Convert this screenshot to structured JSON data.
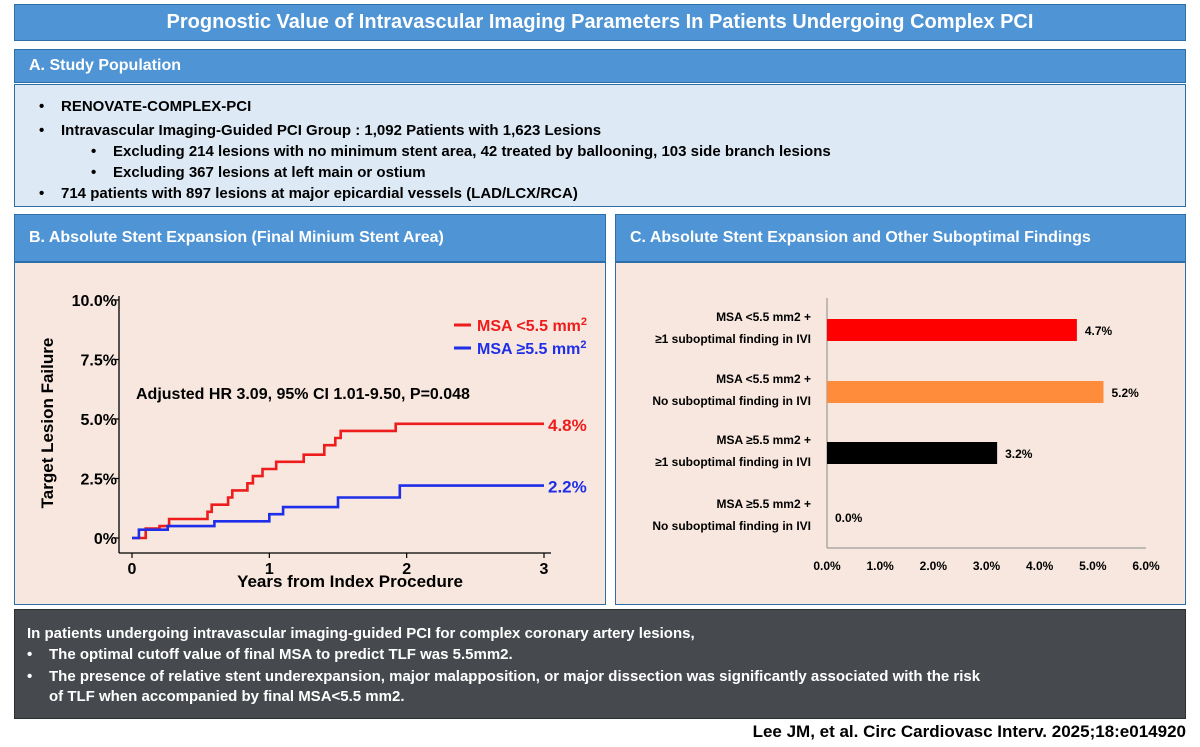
{
  "title": "Prognostic Value of Intravascular Imaging Parameters In Patients Undergoing Complex PCI",
  "section_a": {
    "heading": "A. Study Population",
    "bullets": [
      "RENOVATE-COMPLEX-PCI",
      "Intravascular Imaging-Guided PCI Group : 1,092 Patients with 1,623 Lesions",
      "Excluding 214 lesions with no minimum stent area, 42 treated by ballooning, 103 side branch lesions",
      "Excluding 367 lesions at left main or ostium",
      "714 patients with 897 lesions at major epicardial vessels (LAD/LCX/RCA)"
    ]
  },
  "section_b": {
    "heading": "B. Absolute Stent Expansion (Final Minium Stent Area)"
  },
  "section_c": {
    "heading": "C. Absolute Stent Expansion and Other Suboptimal Findings"
  },
  "conclusion": {
    "intro": "In patients undergoing intravascular imaging-guided PCI for complex coronary artery lesions,",
    "bullets": [
      "The optimal cutoff value of final MSA to predict TLF was 5.5mm2.",
      "The presence of relative stent underexpansion, major malapposition, or major dissection was significantly associated with the risk",
      "of TLF when accompanied by final MSA<5.5 mm2."
    ]
  },
  "citation": "Lee JM, et al. Circ Cardiovasc Interv. 2025;18:e014920",
  "chart_data": [
    {
      "type": "line",
      "xlabel": "Years from Index Procedure",
      "ylabel": "Target Lesion Failure",
      "xticks": [
        "0",
        "1",
        "2",
        "3"
      ],
      "yticks": [
        "0%",
        "2.5%",
        "5.0%",
        "7.5%",
        "10.0%"
      ],
      "xlim": [
        0,
        3
      ],
      "ylim": [
        0,
        10
      ],
      "annotation": "Adjusted HR 3.09, 95% CI 1.01-9.50, P=0.048",
      "legend_position": "top-right",
      "series": [
        {
          "name": "MSA <5.5 mm",
          "name_sup": "2",
          "color": "#ee1c1c",
          "end_label": "4.8%",
          "points": [
            [
              0,
              0
            ],
            [
              0.1,
              0
            ],
            [
              0.1,
              0.4
            ],
            [
              0.2,
              0.4
            ],
            [
              0.2,
              0.5
            ],
            [
              0.27,
              0.5
            ],
            [
              0.27,
              0.8
            ],
            [
              0.55,
              0.8
            ],
            [
              0.55,
              1.1
            ],
            [
              0.58,
              1.1
            ],
            [
              0.58,
              1.4
            ],
            [
              0.7,
              1.4
            ],
            [
              0.7,
              1.7
            ],
            [
              0.73,
              1.7
            ],
            [
              0.73,
              2.0
            ],
            [
              0.84,
              2.0
            ],
            [
              0.84,
              2.3
            ],
            [
              0.88,
              2.3
            ],
            [
              0.88,
              2.6
            ],
            [
              0.95,
              2.6
            ],
            [
              0.95,
              2.9
            ],
            [
              1.05,
              2.9
            ],
            [
              1.05,
              3.2
            ],
            [
              1.25,
              3.2
            ],
            [
              1.25,
              3.5
            ],
            [
              1.4,
              3.5
            ],
            [
              1.4,
              3.9
            ],
            [
              1.48,
              3.9
            ],
            [
              1.48,
              4.2
            ],
            [
              1.52,
              4.2
            ],
            [
              1.52,
              4.5
            ],
            [
              1.92,
              4.5
            ],
            [
              1.92,
              4.8
            ],
            [
              3.0,
              4.8
            ]
          ]
        },
        {
          "name": "MSA ≥5.5 mm",
          "name_sup": "2",
          "color": "#1f2ee8",
          "end_label": "2.2%",
          "points": [
            [
              0,
              0
            ],
            [
              0.05,
              0
            ],
            [
              0.05,
              0.25
            ],
            [
              0.05,
              0.35
            ],
            [
              0.26,
              0.35
            ],
            [
              0.26,
              0.5
            ],
            [
              0.6,
              0.5
            ],
            [
              0.6,
              0.7
            ],
            [
              1.0,
              0.7
            ],
            [
              1.0,
              1.0
            ],
            [
              1.1,
              1.0
            ],
            [
              1.1,
              1.3
            ],
            [
              1.5,
              1.3
            ],
            [
              1.5,
              1.7
            ],
            [
              1.95,
              1.7
            ],
            [
              1.95,
              2.2
            ],
            [
              3.0,
              2.2
            ]
          ]
        }
      ]
    },
    {
      "type": "bar",
      "orientation": "horizontal",
      "categories": [
        [
          "MSA  <5.5 mm2 +",
          "≥1  suboptimal finding in IVI"
        ],
        [
          "MSA  <5.5 mm2 +",
          "No suboptimal finding in IVI"
        ],
        [
          "MSA  ≥5.5 mm2 +",
          "≥1  suboptimal finding in IVI"
        ],
        [
          "MSA  ≥5.5 mm2 +",
          "No suboptimal finding in IVI"
        ]
      ],
      "values": [
        4.7,
        5.2,
        3.2,
        0.0
      ],
      "value_labels": [
        "4.7%",
        "5.2%",
        "3.2%",
        "0.0%"
      ],
      "colors": [
        "#ff0000",
        "#ff8c3a",
        "#000000",
        "#000000"
      ],
      "xticks": [
        "0.0%",
        "1.0%",
        "2.0%",
        "3.0%",
        "4.0%",
        "5.0%",
        "6.0%"
      ],
      "xlim": [
        0,
        6
      ]
    }
  ]
}
